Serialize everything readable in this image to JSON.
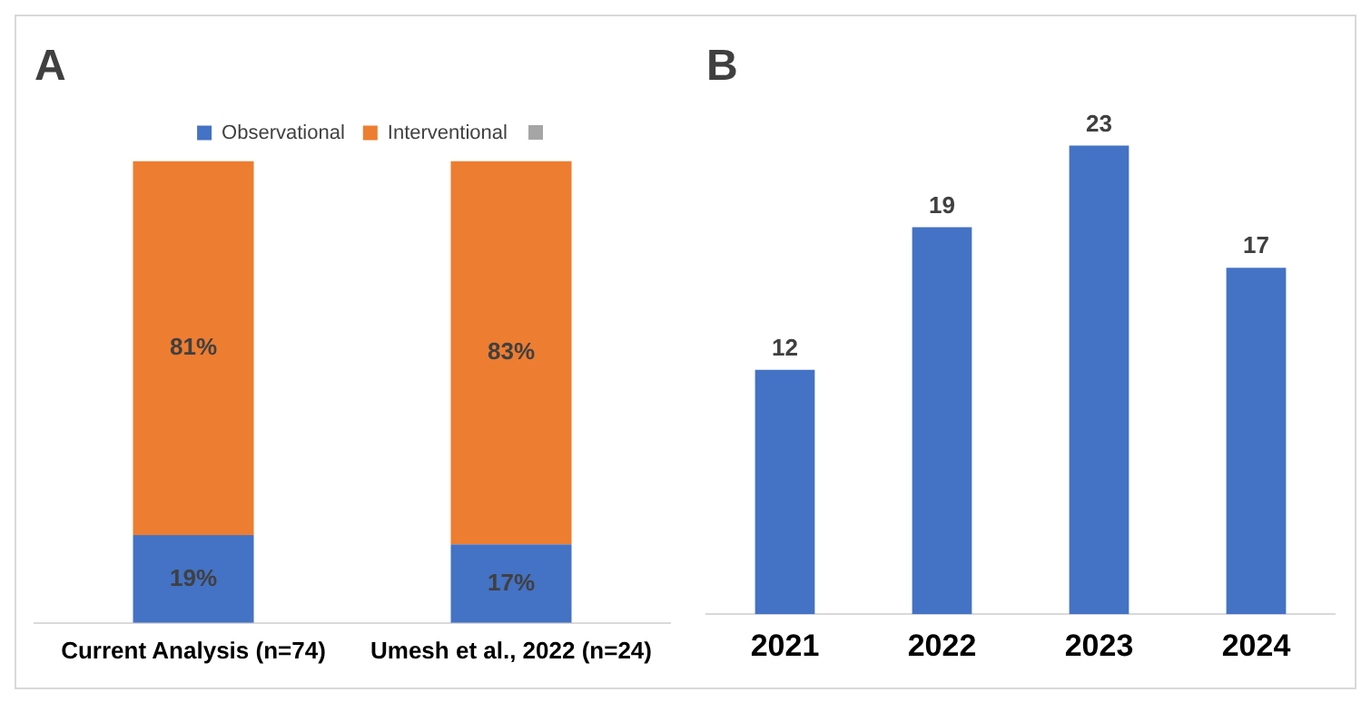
{
  "chart_data": [
    {
      "type": "bar",
      "title": "A",
      "stacked": true,
      "legend": "top",
      "grid": false,
      "categories": [
        "Current Analysis (n=74)",
        "Umesh et al., 2022 (n=24)"
      ],
      "series": [
        {
          "name": "Observational",
          "color": "#4472c4",
          "values": [
            19,
            17
          ],
          "value_labels": [
            "19%",
            "17%"
          ]
        },
        {
          "name": "Interventional",
          "color": "#ed7d31",
          "values": [
            81,
            83
          ],
          "value_labels": [
            "81%",
            "83%"
          ]
        }
      ]
    },
    {
      "type": "bar",
      "title": "B",
      "grid": false,
      "data_labels": true,
      "categories": [
        "2021",
        "2022",
        "2023",
        "2024"
      ],
      "values": [
        12,
        19,
        23,
        17
      ],
      "color": "#4472c4"
    }
  ]
}
